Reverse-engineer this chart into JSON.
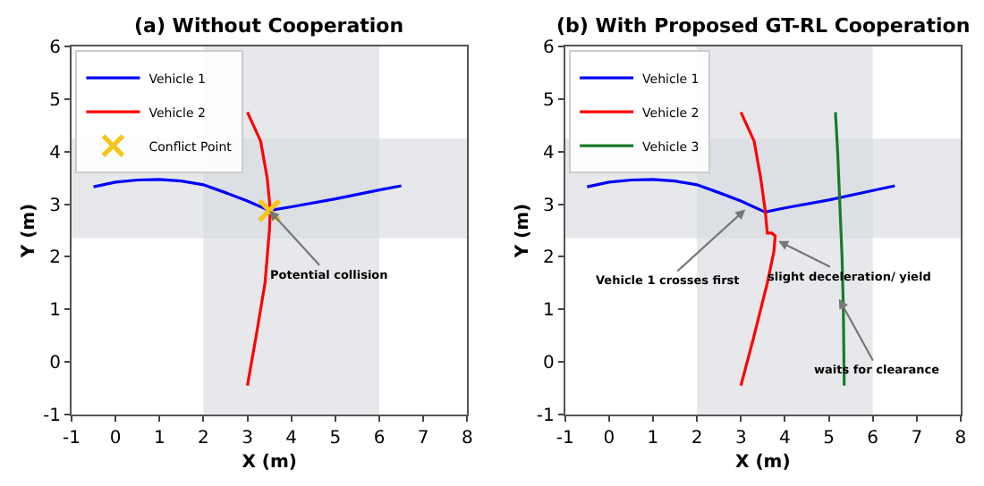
{
  "chart_data": [
    {
      "type": "line",
      "title": "(a) Without Cooperation",
      "xlabel": "X (m)",
      "ylabel": "Y (m)",
      "xlim": [
        -1,
        8
      ],
      "ylim": [
        -1,
        6
      ],
      "xticks": [
        -1,
        0,
        1,
        2,
        3,
        4,
        5,
        6,
        7,
        8
      ],
      "yticks": [
        -1,
        0,
        1,
        2,
        3,
        4,
        5,
        6
      ],
      "grid": false,
      "legend": "top left",
      "marker": "none",
      "line_style": "solid",
      "bands": [
        {
          "axis": "x",
          "from": 2,
          "to": 6,
          "color": "#d5d8de"
        },
        {
          "axis": "y",
          "from": 2.35,
          "to": 4.25,
          "color": "#d5d8de"
        }
      ],
      "series": [
        {
          "name": "Vehicle 1",
          "color": "#0000ff",
          "x": [
            -0.5,
            0,
            0.5,
            1,
            1.5,
            2,
            2.5,
            3,
            3.5,
            4,
            5,
            6,
            6.5
          ],
          "values": [
            3.33,
            3.42,
            3.46,
            3.47,
            3.44,
            3.37,
            3.22,
            3.06,
            2.88,
            2.95,
            3.1,
            3.27,
            3.35
          ]
        },
        {
          "name": "Vehicle 2",
          "color": "#ff0000",
          "x": [
            3,
            3.2,
            3.4,
            3.5,
            3.52,
            3.45,
            3.3,
            3
          ],
          "values": [
            -0.45,
            0.5,
            1.5,
            2.5,
            2.9,
            3.5,
            4.2,
            4.75
          ]
        },
        {
          "name": "Conflict Point",
          "type": "scatter",
          "marker": "cross",
          "color": "#f5c518",
          "x": [
            3.5
          ],
          "values": [
            2.88
          ]
        }
      ],
      "annotations": [
        {
          "text": "Potential collision",
          "x": 3.5,
          "y": 2.88
        }
      ]
    },
    {
      "type": "line",
      "title": "(b) With Proposed GT-RL Cooperation",
      "xlabel": "X (m)",
      "ylabel": "Y (m)",
      "xlim": [
        -1,
        8
      ],
      "ylim": [
        -1,
        6
      ],
      "xticks": [
        -1,
        0,
        1,
        2,
        3,
        4,
        5,
        6,
        7,
        8
      ],
      "yticks": [
        -1,
        0,
        1,
        2,
        3,
        4,
        5,
        6
      ],
      "grid": false,
      "legend": "top left",
      "marker": "none",
      "line_style": "solid",
      "bands": [
        {
          "axis": "x",
          "from": 2,
          "to": 6,
          "color": "#d5d8de"
        },
        {
          "axis": "y",
          "from": 2.35,
          "to": 4.25,
          "color": "#d5d8de"
        }
      ],
      "series": [
        {
          "name": "Vehicle 1",
          "color": "#0000ff",
          "x": [
            -0.5,
            0,
            0.5,
            1,
            1.5,
            2,
            2.5,
            3,
            3.55,
            4,
            5,
            6,
            6.5
          ],
          "values": [
            3.33,
            3.42,
            3.46,
            3.47,
            3.44,
            3.37,
            3.22,
            3.06,
            2.85,
            2.93,
            3.08,
            3.26,
            3.35
          ]
        },
        {
          "name": "Vehicle 2",
          "color": "#ff0000",
          "x": [
            3,
            3.3,
            3.6,
            3.75,
            3.78,
            3.7,
            3.6,
            3.55,
            3.45,
            3.3,
            3
          ],
          "values": [
            -0.45,
            0.5,
            1.5,
            2.1,
            2.4,
            2.45,
            2.45,
            2.9,
            3.5,
            4.2,
            4.75
          ]
        },
        {
          "name": "Vehicle 3",
          "color": "#1a7a2a",
          "x": [
            5.35,
            5.33,
            5.3,
            5.25,
            5.2,
            5.15
          ],
          "values": [
            -0.45,
            1,
            2,
            3,
            4,
            4.75
          ]
        }
      ],
      "annotations": [
        {
          "text": "Vehicle 1 crosses first",
          "x": 3.1,
          "y": 2.9
        },
        {
          "text": "slight deceleration/ yield",
          "x": 3.85,
          "y": 2.3
        },
        {
          "text": "waits for clearance",
          "x": 5.23,
          "y": 1.2
        }
      ]
    }
  ]
}
